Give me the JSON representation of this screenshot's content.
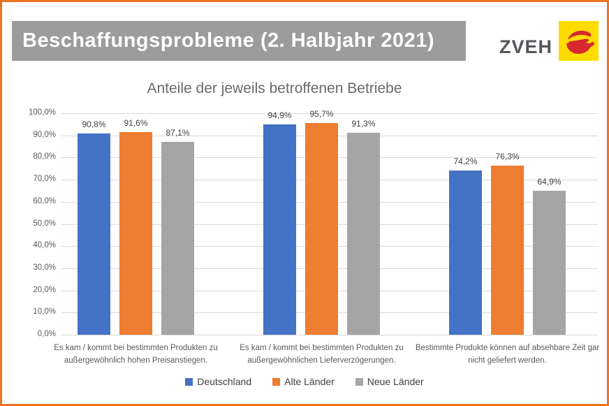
{
  "header": {
    "title": "Beschaffungsprobleme (2. Halbjahr 2021)",
    "logo_text": "ZVEH"
  },
  "chart_data": {
    "type": "bar",
    "title": "Anteile der jeweils betroffenen Betriebe",
    "categories": [
      "Es kam / kommt bei bestimmten Produkten zu außergewöhnlich hohen Preisanstiegen.",
      "Es kam / kommt bei bestimmten Produkten zu außergewöhnlichen Lieferverzögerungen.",
      "Bestimmte Produkte können auf absehbare Zeit gar nicht geliefert werden."
    ],
    "series": [
      {
        "name": "Deutschland",
        "color": "#4472C4",
        "values": [
          90.8,
          94.9,
          74.2
        ],
        "labels": [
          "90,8%",
          "94,9%",
          "74,2%"
        ]
      },
      {
        "name": "Alte Länder",
        "color": "#ED7D31",
        "values": [
          91.6,
          95.7,
          76.3
        ],
        "labels": [
          "91,6%",
          "95,7%",
          "76,3%"
        ]
      },
      {
        "name": "Neue Länder",
        "color": "#A5A5A5",
        "values": [
          87.1,
          91.3,
          64.9
        ],
        "labels": [
          "87,1%",
          "91,3%",
          "64,9%"
        ]
      }
    ],
    "y_axis": {
      "min": 0,
      "max": 100,
      "step": 10,
      "tick_labels": [
        "0,0%",
        "10,0%",
        "20,0%",
        "30,0%",
        "40,0%",
        "50,0%",
        "60,0%",
        "70,0%",
        "80,0%",
        "90,0%",
        "100,0%"
      ]
    },
    "grid": true,
    "legend_position": "bottom",
    "colors": {
      "border": "#E87424",
      "title_bar_bg": "#9C9C9C",
      "title_bar_text": "#FFFFFF",
      "gridline": "#D9D9D9",
      "axis_text": "#595959",
      "logo_yellow": "#FFDC00",
      "logo_red": "#D7282F"
    }
  }
}
